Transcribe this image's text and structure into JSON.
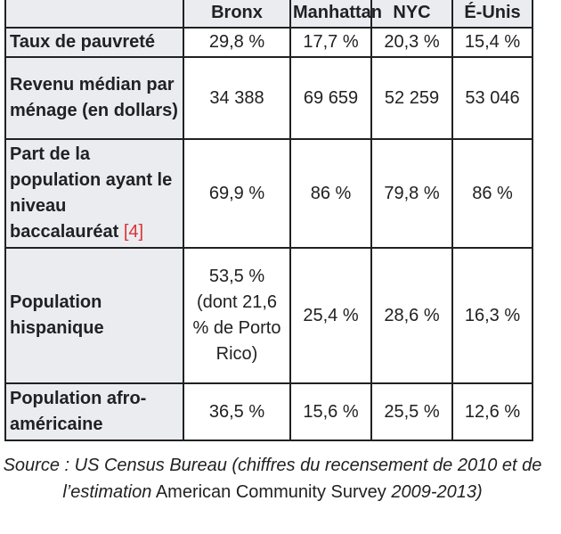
{
  "table": {
    "headers": [
      "",
      "Bronx",
      "Manhattan",
      "NYC",
      "É-Unis"
    ],
    "rows": [
      {
        "label": "Taux de pauvreté",
        "values": [
          "29,8 %",
          "17,7 %",
          "20,3 %",
          "15,4 %"
        ]
      },
      {
        "label": "Revenu médian par ménage (en dollars)",
        "values": [
          "34 388",
          "69 659",
          "52 259",
          "53 046"
        ]
      },
      {
        "label": "Part de la population ayant le niveau baccalauréat",
        "ref": "[4]",
        "values": [
          "69,9 %",
          "86 %",
          "79,8 %",
          "86 %"
        ]
      },
      {
        "label": "Population hispanique",
        "values": [
          "53,5 % (dont 21,6 % de Porto Rico)",
          "25,4 %",
          "28,6 %",
          "16,3 %"
        ]
      },
      {
        "label": "Population afro-américaine",
        "values": [
          "36,5 %",
          "15,6 %",
          "25,5 %",
          "12,6 %"
        ]
      }
    ]
  },
  "caption": {
    "part1": "Source : US Census Bureau (chiffres du recensement de 2010 et de l’estimation",
    "part2": " American Community Survey ",
    "part3": "2009-2013)"
  }
}
